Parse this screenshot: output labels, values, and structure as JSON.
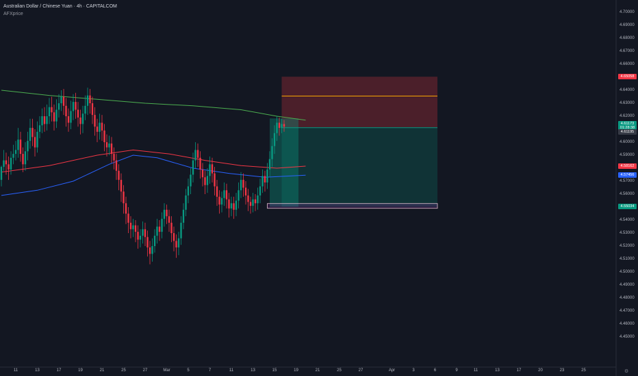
{
  "header": {
    "title": "Australian Dollar / Chinese Yuan · 4h · CAPITALCOM",
    "subtitle": "AFXprice"
  },
  "colors": {
    "background": "#131722",
    "bull": "#089981",
    "bear": "#f23645",
    "ma_green": "#4caf50",
    "ma_red": "#f23645",
    "ma_blue": "#2962ff",
    "stop_zone": "#f23645",
    "target_zone": "#089981",
    "level_line": "#f7a600"
  },
  "chart_data": {
    "type": "candlestick",
    "ylim": [
      4.44,
      4.7
    ],
    "y_ticks": [
      "4.70000",
      "4.69000",
      "4.68000",
      "4.67000",
      "4.66000",
      "4.65000",
      "4.64000",
      "4.63000",
      "4.62000",
      "4.61000",
      "4.60000",
      "4.59000",
      "4.58000",
      "4.57000",
      "4.56000",
      "4.55000",
      "4.54000",
      "4.53000",
      "4.52000",
      "4.51000",
      "4.50000",
      "4.49000",
      "4.48000",
      "4.47000",
      "4.46000",
      "4.45000"
    ],
    "x_ticks": [
      {
        "label": "11",
        "idx": 6
      },
      {
        "label": "13",
        "idx": 15
      },
      {
        "label": "17",
        "idx": 24
      },
      {
        "label": "19",
        "idx": 33
      },
      {
        "label": "21",
        "idx": 42
      },
      {
        "label": "25",
        "idx": 51
      },
      {
        "label": "27",
        "idx": 60
      },
      {
        "label": "Mar",
        "idx": 69
      },
      {
        "label": "5",
        "idx": 78
      },
      {
        "label": "7",
        "idx": 87
      },
      {
        "label": "11",
        "idx": 96
      },
      {
        "label": "13",
        "idx": 105
      },
      {
        "label": "15",
        "idx": 114
      },
      {
        "label": "19",
        "idx": 123
      },
      {
        "label": "21",
        "idx": 132
      },
      {
        "label": "25",
        "idx": 141
      },
      {
        "label": "27",
        "idx": 150
      },
      {
        "label": "Apr",
        "idx": 163
      },
      {
        "label": "3",
        "idx": 172
      },
      {
        "label": "6",
        "idx": 181
      },
      {
        "label": "9",
        "idx": 190
      },
      {
        "label": "11",
        "idx": 198
      },
      {
        "label": "13",
        "idx": 207
      },
      {
        "label": "17",
        "idx": 216
      },
      {
        "label": "20",
        "idx": 225
      },
      {
        "label": "23",
        "idx": 234
      },
      {
        "label": "25",
        "idx": 243
      }
    ],
    "price_tags": [
      {
        "label": "4.65058",
        "value": 4.65058,
        "color": "#f23645"
      },
      {
        "label": "4.61173",
        "value": 4.6144,
        "color": "#089981"
      },
      {
        "label": "01:28:38",
        "value": 4.6112,
        "color": "#089981"
      },
      {
        "label": "4.61195",
        "value": 4.6078,
        "color": "#363a45"
      },
      {
        "label": "4.58162",
        "value": 4.58162,
        "color": "#f23645"
      },
      {
        "label": "4.57456",
        "value": 4.57456,
        "color": "#2962ff"
      },
      {
        "label": "4.55034",
        "value": 4.55034,
        "color": "#089981"
      }
    ],
    "candles": [
      [
        4.571,
        4.581,
        4.582,
        4.566
      ],
      [
        4.581,
        4.586,
        4.594,
        4.578
      ],
      [
        4.586,
        4.583,
        4.592,
        4.575
      ],
      [
        4.583,
        4.579,
        4.589,
        4.571
      ],
      [
        4.579,
        4.588,
        4.593,
        4.575
      ],
      [
        4.588,
        4.591,
        4.598,
        4.583
      ],
      [
        4.591,
        4.594,
        4.601,
        4.586
      ],
      [
        4.594,
        4.602,
        4.611,
        4.588
      ],
      [
        4.602,
        4.591,
        4.608,
        4.585
      ],
      [
        4.591,
        4.583,
        4.596,
        4.577
      ],
      [
        4.583,
        4.593,
        4.6,
        4.578
      ],
      [
        4.593,
        4.601,
        4.608,
        4.586
      ],
      [
        4.601,
        4.611,
        4.618,
        4.595
      ],
      [
        4.611,
        4.604,
        4.618,
        4.597
      ],
      [
        4.604,
        4.596,
        4.61,
        4.589
      ],
      [
        4.596,
        4.608,
        4.616,
        4.592
      ],
      [
        4.608,
        4.613,
        4.62,
        4.603
      ],
      [
        4.613,
        4.62,
        4.626,
        4.607
      ],
      [
        4.62,
        4.614,
        4.627,
        4.608
      ],
      [
        4.614,
        4.62,
        4.629,
        4.609
      ],
      [
        4.62,
        4.627,
        4.634,
        4.614
      ],
      [
        4.627,
        4.623,
        4.635,
        4.616
      ],
      [
        4.623,
        4.616,
        4.629,
        4.609
      ],
      [
        4.616,
        4.625,
        4.633,
        4.611
      ],
      [
        4.625,
        4.63,
        4.637,
        4.619
      ],
      [
        4.63,
        4.635,
        4.64,
        4.624
      ],
      [
        4.635,
        4.628,
        4.641,
        4.621
      ],
      [
        4.628,
        4.62,
        4.634,
        4.612
      ],
      [
        4.62,
        4.615,
        4.626,
        4.608
      ],
      [
        4.615,
        4.624,
        4.632,
        4.61
      ],
      [
        4.624,
        4.631,
        4.637,
        4.617
      ],
      [
        4.631,
        4.625,
        4.638,
        4.618
      ],
      [
        4.625,
        4.619,
        4.631,
        4.612
      ],
      [
        4.619,
        4.614,
        4.625,
        4.606
      ],
      [
        4.614,
        4.622,
        4.628,
        4.607
      ],
      [
        4.622,
        4.628,
        4.636,
        4.617
      ],
      [
        4.628,
        4.636,
        4.642,
        4.621
      ],
      [
        4.636,
        4.63,
        4.641,
        4.622
      ],
      [
        4.63,
        4.621,
        4.635,
        4.614
      ],
      [
        4.621,
        4.612,
        4.627,
        4.605
      ],
      [
        4.612,
        4.608,
        4.618,
        4.6
      ],
      [
        4.608,
        4.615,
        4.622,
        4.602
      ],
      [
        4.615,
        4.609,
        4.621,
        4.601
      ],
      [
        4.609,
        4.6,
        4.614,
        4.593
      ],
      [
        4.6,
        4.596,
        4.606,
        4.589
      ],
      [
        4.596,
        4.599,
        4.605,
        4.59
      ],
      [
        4.599,
        4.591,
        4.604,
        4.584
      ],
      [
        4.591,
        4.586,
        4.596,
        4.579
      ],
      [
        4.586,
        4.578,
        4.591,
        4.571
      ],
      [
        4.578,
        4.571,
        4.583,
        4.563
      ],
      [
        4.571,
        4.562,
        4.576,
        4.554
      ],
      [
        4.562,
        4.553,
        4.567,
        4.545
      ],
      [
        4.553,
        4.545,
        4.558,
        4.537
      ],
      [
        4.545,
        4.538,
        4.55,
        4.53
      ],
      [
        4.538,
        4.533,
        4.543,
        4.526
      ],
      [
        4.533,
        4.536,
        4.541,
        4.527
      ],
      [
        4.536,
        4.531,
        4.54,
        4.523
      ],
      [
        4.531,
        4.525,
        4.536,
        4.518
      ],
      [
        4.525,
        4.528,
        4.533,
        4.519
      ],
      [
        4.528,
        4.533,
        4.539,
        4.522
      ],
      [
        4.533,
        4.527,
        4.538,
        4.52
      ],
      [
        4.527,
        4.519,
        4.532,
        4.512
      ],
      [
        4.519,
        4.514,
        4.524,
        4.506
      ],
      [
        4.514,
        4.52,
        4.526,
        4.508
      ],
      [
        4.52,
        4.528,
        4.533,
        4.515
      ],
      [
        4.528,
        4.535,
        4.541,
        4.522
      ],
      [
        4.535,
        4.531,
        4.54,
        4.524
      ],
      [
        4.531,
        4.541,
        4.546,
        4.526
      ],
      [
        4.541,
        4.548,
        4.553,
        4.535
      ],
      [
        4.548,
        4.543,
        4.552,
        4.537
      ],
      [
        4.543,
        4.538,
        4.548,
        4.531
      ],
      [
        4.538,
        4.53,
        4.543,
        4.523
      ],
      [
        4.53,
        4.524,
        4.535,
        4.516
      ],
      [
        4.524,
        4.519,
        4.529,
        4.511
      ],
      [
        4.519,
        4.526,
        4.531,
        4.513
      ],
      [
        4.526,
        4.538,
        4.543,
        4.521
      ],
      [
        4.538,
        4.548,
        4.553,
        4.533
      ],
      [
        4.548,
        4.559,
        4.564,
        4.543
      ],
      [
        4.559,
        4.566,
        4.572,
        4.553
      ],
      [
        4.566,
        4.575,
        4.58,
        4.56
      ],
      [
        4.575,
        4.586,
        4.592,
        4.569
      ],
      [
        4.586,
        4.594,
        4.6,
        4.58
      ],
      [
        4.594,
        4.588,
        4.599,
        4.581
      ],
      [
        4.588,
        4.579,
        4.593,
        4.572
      ],
      [
        4.579,
        4.573,
        4.584,
        4.566
      ],
      [
        4.573,
        4.567,
        4.578,
        4.56
      ],
      [
        4.567,
        4.574,
        4.58,
        4.561
      ],
      [
        4.574,
        4.583,
        4.589,
        4.568
      ],
      [
        4.583,
        4.576,
        4.588,
        4.569
      ],
      [
        4.576,
        4.566,
        4.581,
        4.559
      ],
      [
        4.566,
        4.558,
        4.571,
        4.551
      ],
      [
        4.558,
        4.552,
        4.563,
        4.545
      ],
      [
        4.552,
        4.557,
        4.562,
        4.546
      ],
      [
        4.557,
        4.563,
        4.569,
        4.551
      ],
      [
        4.563,
        4.556,
        4.568,
        4.549
      ],
      [
        4.556,
        4.549,
        4.561,
        4.542
      ],
      [
        4.549,
        4.553,
        4.558,
        4.543
      ],
      [
        4.553,
        4.548,
        4.558,
        4.541
      ],
      [
        4.548,
        4.555,
        4.561,
        4.543
      ],
      [
        4.555,
        4.563,
        4.569,
        4.549
      ],
      [
        4.563,
        4.571,
        4.577,
        4.557
      ],
      [
        4.571,
        4.565,
        4.576,
        4.558
      ],
      [
        4.565,
        4.559,
        4.57,
        4.552
      ],
      [
        4.559,
        4.554,
        4.564,
        4.547
      ],
      [
        4.554,
        4.551,
        4.558,
        4.545
      ],
      [
        4.551,
        4.556,
        4.561,
        4.546
      ],
      [
        4.556,
        4.553,
        4.56,
        4.547
      ],
      [
        4.553,
        4.559,
        4.565,
        4.548
      ],
      [
        4.559,
        4.566,
        4.572,
        4.553
      ],
      [
        4.566,
        4.574,
        4.579,
        4.561
      ],
      [
        4.574,
        4.569,
        4.578,
        4.562
      ],
      [
        4.569,
        4.579,
        4.584,
        4.564
      ],
      [
        4.579,
        4.587,
        4.593,
        4.573
      ],
      [
        4.587,
        4.597,
        4.603,
        4.581
      ],
      [
        4.597,
        4.607,
        4.613,
        4.591
      ],
      [
        4.607,
        4.615,
        4.62,
        4.601
      ],
      [
        4.615,
        4.611,
        4.619,
        4.605
      ],
      [
        4.611,
        4.614,
        4.618,
        4.607
      ],
      [
        4.614,
        4.612,
        4.617,
        4.608
      ]
    ],
    "moving_averages": [
      {
        "color": "#4caf50",
        "points": [
          [
            0,
            4.64
          ],
          [
            20,
            4.636
          ],
          [
            40,
            4.633
          ],
          [
            60,
            4.63
          ],
          [
            80,
            4.628
          ],
          [
            100,
            4.625
          ],
          [
            115,
            4.62
          ],
          [
            127,
            4.617
          ]
        ]
      },
      {
        "color": "#f23645",
        "points": [
          [
            0,
            4.577
          ],
          [
            20,
            4.582
          ],
          [
            40,
            4.59
          ],
          [
            55,
            4.594
          ],
          [
            70,
            4.591
          ],
          [
            85,
            4.586
          ],
          [
            100,
            4.582
          ],
          [
            115,
            4.58
          ],
          [
            127,
            4.5816
          ]
        ]
      },
      {
        "color": "#2962ff",
        "points": [
          [
            0,
            4.559
          ],
          [
            15,
            4.563
          ],
          [
            30,
            4.57
          ],
          [
            45,
            4.583
          ],
          [
            55,
            4.59
          ],
          [
            65,
            4.588
          ],
          [
            80,
            4.58
          ],
          [
            95,
            4.576
          ],
          [
            110,
            4.573
          ],
          [
            127,
            4.5746
          ]
        ]
      }
    ],
    "zones": {
      "stop": {
        "from_idx": 117,
        "to_idx": 182,
        "top": 4.6504,
        "bottom": 4.6112
      },
      "target": {
        "from_idx": 117,
        "to_idx": 182,
        "top": 4.6112,
        "bottom": 4.5503
      },
      "entry_box": {
        "from_idx": 112,
        "to_idx": 124,
        "top": 4.6183,
        "bottom": 4.5503
      },
      "level_line": {
        "from_idx": 117,
        "to_idx": 182,
        "value": 4.6355
      },
      "base_box": {
        "from_idx": 111,
        "to_idx": 182,
        "top": 4.5512,
        "bottom": 4.5468
      }
    }
  }
}
